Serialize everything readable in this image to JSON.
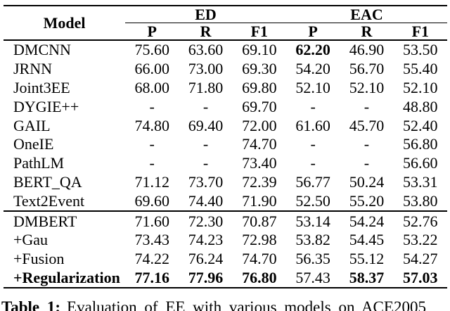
{
  "table": {
    "header": {
      "model_label": "Model",
      "groups": [
        {
          "label": "ED"
        },
        {
          "label": "EAC"
        }
      ],
      "subheaders": [
        "P",
        "R",
        "F1",
        "P",
        "R",
        "F1"
      ]
    },
    "sections": [
      {
        "rows": [
          {
            "model": "DMCNN",
            "cells": [
              {
                "v": "75.60"
              },
              {
                "v": "63.60"
              },
              {
                "v": "69.10"
              },
              {
                "v": "62.20",
                "b": true
              },
              {
                "v": "46.90"
              },
              {
                "v": "53.50"
              }
            ]
          },
          {
            "model": "JRNN",
            "cells": [
              {
                "v": "66.00"
              },
              {
                "v": "73.00"
              },
              {
                "v": "69.30"
              },
              {
                "v": "54.20"
              },
              {
                "v": "56.70"
              },
              {
                "v": "55.40"
              }
            ]
          },
          {
            "model": "Joint3EE",
            "cells": [
              {
                "v": "68.00"
              },
              {
                "v": "71.80"
              },
              {
                "v": "69.80"
              },
              {
                "v": "52.10"
              },
              {
                "v": "52.10"
              },
              {
                "v": "52.10"
              }
            ]
          },
          {
            "model": "DYGIE++",
            "cells": [
              {
                "v": "-"
              },
              {
                "v": "-"
              },
              {
                "v": "69.70"
              },
              {
                "v": "-"
              },
              {
                "v": "-"
              },
              {
                "v": "48.80"
              }
            ]
          },
          {
            "model": "GAIL",
            "cells": [
              {
                "v": "74.80"
              },
              {
                "v": "69.40"
              },
              {
                "v": "72.00"
              },
              {
                "v": "61.60"
              },
              {
                "v": "45.70"
              },
              {
                "v": "52.40"
              }
            ]
          },
          {
            "model": "OneIE",
            "cells": [
              {
                "v": "-"
              },
              {
                "v": "-"
              },
              {
                "v": "74.70"
              },
              {
                "v": "-"
              },
              {
                "v": "-"
              },
              {
                "v": "56.80"
              }
            ]
          },
          {
            "model": "PathLM",
            "cells": [
              {
                "v": "-"
              },
              {
                "v": "-"
              },
              {
                "v": "73.40"
              },
              {
                "v": "-"
              },
              {
                "v": "-"
              },
              {
                "v": "56.60"
              }
            ]
          },
          {
            "model": "BERT_QA",
            "cells": [
              {
                "v": "71.12"
              },
              {
                "v": "73.70"
              },
              {
                "v": "72.39"
              },
              {
                "v": "56.77"
              },
              {
                "v": "50.24"
              },
              {
                "v": "53.31"
              }
            ]
          },
          {
            "model": "Text2Event",
            "cells": [
              {
                "v": "69.60"
              },
              {
                "v": "74.40"
              },
              {
                "v": "71.90"
              },
              {
                "v": "52.50"
              },
              {
                "v": "55.20"
              },
              {
                "v": "53.80"
              }
            ]
          }
        ]
      },
      {
        "rows": [
          {
            "model": "DMBERT",
            "cells": [
              {
                "v": "71.60"
              },
              {
                "v": "72.30"
              },
              {
                "v": "70.87"
              },
              {
                "v": "53.14"
              },
              {
                "v": "54.24"
              },
              {
                "v": "52.76"
              }
            ]
          },
          {
            "model": "+Gau",
            "cells": [
              {
                "v": "73.43"
              },
              {
                "v": "74.23"
              },
              {
                "v": "72.98"
              },
              {
                "v": "53.82"
              },
              {
                "v": "54.45"
              },
              {
                "v": "53.22"
              }
            ]
          },
          {
            "model": "+Fusion",
            "cells": [
              {
                "v": "74.22"
              },
              {
                "v": "76.24"
              },
              {
                "v": "74.70"
              },
              {
                "v": "56.35"
              },
              {
                "v": "55.12"
              },
              {
                "v": "54.27"
              }
            ]
          },
          {
            "model": "+Regularization",
            "b": true,
            "cells": [
              {
                "v": "77.16",
                "b": true
              },
              {
                "v": "77.96",
                "b": true
              },
              {
                "v": "76.80",
                "b": true
              },
              {
                "v": "57.43"
              },
              {
                "v": "58.37",
                "b": true
              },
              {
                "v": "57.03",
                "b": true
              }
            ]
          }
        ]
      }
    ]
  },
  "caption": {
    "label": "Table 1:",
    "text": "Evaluation of EE with various models on ACE2005"
  }
}
